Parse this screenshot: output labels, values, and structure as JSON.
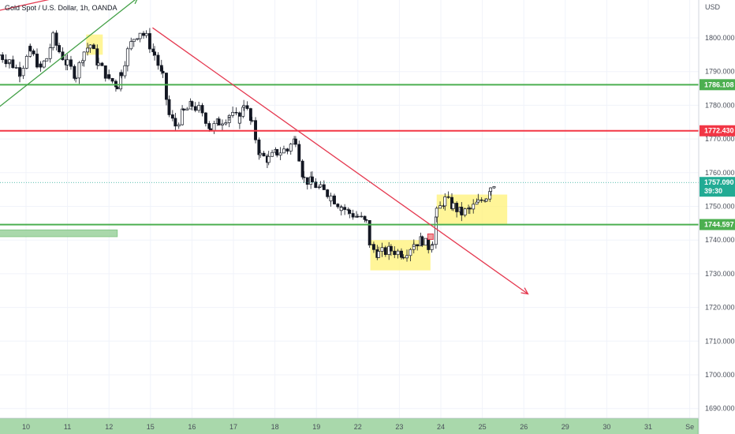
{
  "chart_data": {
    "type": "candlestick",
    "title": "Gold Spot / U.S. Dollar, 1h, OANDA",
    "currency": "USD",
    "ylim": [
      1675,
      1813
    ],
    "grid": true,
    "x_tick_labels": [
      {
        "label": "10",
        "day": 10
      },
      {
        "label": "11",
        "day": 11
      },
      {
        "label": "12",
        "day": 12
      },
      {
        "label": "15",
        "day": 13
      },
      {
        "label": "16",
        "day": 14
      },
      {
        "label": "17",
        "day": 15
      },
      {
        "label": "18",
        "day": 16
      },
      {
        "label": "19",
        "day": 17
      },
      {
        "label": "22",
        "day": 18
      },
      {
        "label": "23",
        "day": 19
      },
      {
        "label": "24",
        "day": 20
      },
      {
        "label": "25",
        "day": 21
      },
      {
        "label": "26",
        "day": 22
      },
      {
        "label": "29",
        "day": 23
      },
      {
        "label": "30",
        "day": 24
      },
      {
        "label": "31",
        "day": 25
      },
      {
        "label": "Se",
        "day": 26
      }
    ],
    "y_ticks": [
      1680,
      1690,
      1700,
      1710,
      1720,
      1730,
      1740,
      1750,
      1760,
      1770,
      1780,
      1790,
      1800
    ],
    "y_tick_labels": [
      "1680.000",
      "1690.000",
      "1700.000",
      "1710.000",
      "1720.000",
      "1730.000",
      "1740.000",
      "1750.000",
      "1760.000",
      "1770.000",
      "1780.000",
      "1790.000",
      "1800.000"
    ],
    "price_path": [
      [
        9.35,
        1795
      ],
      [
        9.6,
        1793
      ],
      [
        9.85,
        1790
      ],
      [
        10.1,
        1796
      ],
      [
        10.35,
        1791
      ],
      [
        10.5,
        1794
      ],
      [
        10.65,
        1800
      ],
      [
        10.8,
        1796
      ],
      [
        11.0,
        1792
      ],
      [
        11.2,
        1789
      ],
      [
        11.4,
        1796
      ],
      [
        11.55,
        1798
      ],
      [
        11.75,
        1792
      ],
      [
        12.0,
        1788
      ],
      [
        12.2,
        1786
      ],
      [
        12.3,
        1790
      ],
      [
        12.45,
        1796
      ],
      [
        12.6,
        1800
      ],
      [
        12.75,
        1802
      ],
      [
        12.9,
        1800
      ],
      [
        13.1,
        1795
      ],
      [
        13.3,
        1788
      ],
      [
        13.45,
        1777
      ],
      [
        13.6,
        1774
      ],
      [
        13.8,
        1778
      ],
      [
        14.0,
        1780
      ],
      [
        14.25,
        1778
      ],
      [
        14.45,
        1773
      ],
      [
        14.65,
        1775
      ],
      [
        14.9,
        1777
      ],
      [
        15.15,
        1776
      ],
      [
        15.25,
        1781
      ],
      [
        15.45,
        1774
      ],
      [
        15.65,
        1765
      ],
      [
        15.85,
        1764
      ],
      [
        16.05,
        1766
      ],
      [
        16.3,
        1767
      ],
      [
        16.5,
        1770
      ],
      [
        16.7,
        1758
      ],
      [
        16.9,
        1757
      ],
      [
        17.1,
        1755
      ],
      [
        17.35,
        1753
      ],
      [
        17.6,
        1750
      ],
      [
        17.8,
        1748
      ],
      [
        18.0,
        1747
      ],
      [
        18.2,
        1745
      ],
      [
        18.3,
        1738
      ],
      [
        18.5,
        1736
      ],
      [
        18.8,
        1737
      ],
      [
        19.1,
        1736
      ],
      [
        19.35,
        1739
      ],
      [
        19.55,
        1740
      ],
      [
        19.7,
        1738
      ],
      [
        19.8,
        1740
      ],
      [
        19.9,
        1748
      ],
      [
        20.1,
        1752
      ],
      [
        20.3,
        1750
      ],
      [
        20.5,
        1748
      ],
      [
        20.7,
        1749
      ],
      [
        20.9,
        1751
      ],
      [
        21.1,
        1753
      ],
      [
        21.2,
        1756
      ],
      [
        21.3,
        1757.09
      ]
    ],
    "ohlc_seed": 7,
    "horizontal_levels": [
      {
        "name": "resistance-1786",
        "price": 1786.108,
        "label": "1786.108",
        "color": "#4caf50"
      },
      {
        "name": "resistance-1772",
        "price": 1772.43,
        "label": "1772.430",
        "color": "#f23645"
      },
      {
        "name": "support-1744",
        "price": 1744.597,
        "label": "1744.597",
        "color": "#4caf50"
      }
    ],
    "last_price": {
      "price": 1757.09,
      "label": "1757.090",
      "countdown": "39:30",
      "color": "#22ab94"
    },
    "trend_lines": [
      {
        "name": "downtrend-line",
        "from": [
          13.05,
          1803
        ],
        "to": [
          22.1,
          1724
        ],
        "color": "#e53950",
        "arrow": true
      },
      {
        "name": "uptrend-line",
        "from": [
          9.3,
          1779
        ],
        "to": [
          12.7,
          1812
        ],
        "color": "#43a047",
        "arrow": true
      },
      {
        "name": "upper-red-line",
        "from": [
          9.3,
          1808
        ],
        "to": [
          11.9,
          1815
        ],
        "color": "#e53950",
        "arrow": true
      }
    ],
    "highlight_boxes": [
      {
        "name": "yellow-box-top",
        "x": [
          11.45,
          11.85
        ],
        "y": [
          1795,
          1801
        ],
        "color": "#fff176"
      },
      {
        "name": "yellow-box-low",
        "x": [
          18.3,
          19.75
        ],
        "y": [
          1731,
          1740
        ],
        "color": "#fff176"
      },
      {
        "name": "yellow-box-high",
        "x": [
          19.9,
          21.6
        ],
        "y": [
          1744.5,
          1753.5
        ],
        "color": "#fff176"
      }
    ],
    "green_zones": [
      {
        "name": "green-zone-left",
        "x": [
          9.3,
          12.2
        ],
        "y": [
          1741,
          1743
        ]
      },
      {
        "name": "green-zone-bottom",
        "x": [
          9.3,
          26.2
        ],
        "y": [
          1677,
          1687
        ]
      }
    ],
    "marker": {
      "name": "entry-marker",
      "x": 19.75,
      "y": 1741,
      "color": "#e53950"
    }
  }
}
